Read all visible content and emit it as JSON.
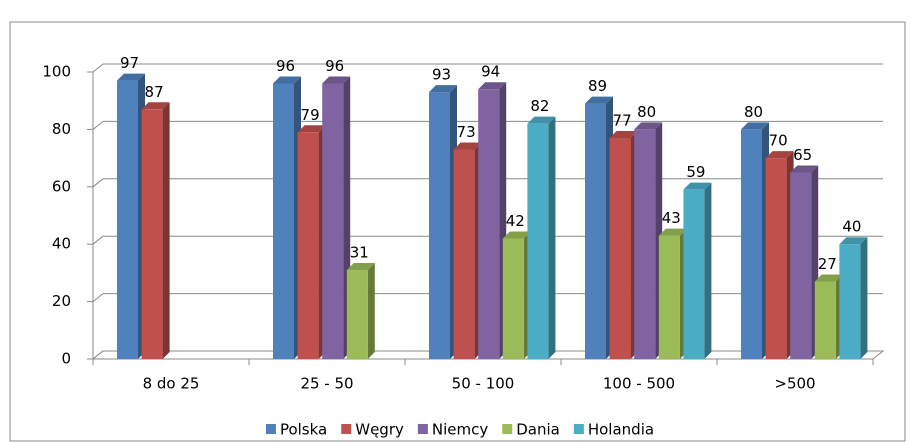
{
  "chart_data": {
    "type": "bar",
    "categories": [
      "8 do 25",
      "25 - 50",
      "50 - 100",
      "100 - 500",
      ">500"
    ],
    "series": [
      {
        "name": "Polska",
        "color": "#4f81bd",
        "values": [
          97,
          96,
          93,
          89,
          80
        ]
      },
      {
        "name": "Węgry",
        "color": "#c0504d",
        "values": [
          87,
          79,
          73,
          77,
          70
        ]
      },
      {
        "name": "Niemcy",
        "color": "#8064a2",
        "values": [
          null,
          96,
          94,
          80,
          65
        ]
      },
      {
        "name": "Dania",
        "color": "#9bbb59",
        "values": [
          null,
          31,
          42,
          43,
          27
        ]
      },
      {
        "name": "Holandia",
        "color": "#4bacc6",
        "values": [
          null,
          null,
          82,
          59,
          40
        ]
      }
    ],
    "ylim": [
      0,
      100
    ],
    "yticks": [
      0,
      20,
      40,
      60,
      80,
      100
    ],
    "grid": true,
    "legend": "bottom"
  }
}
